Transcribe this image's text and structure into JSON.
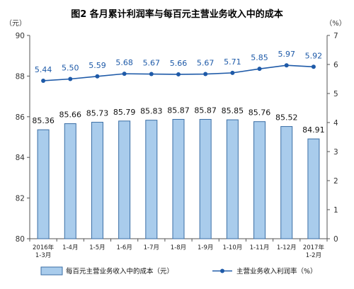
{
  "chart_data": {
    "type": "bar+line",
    "title": "图2 各月累计利润率与每百元主营业务收入中的成本",
    "left_axis_unit": "（元）",
    "right_axis_unit": "（%）",
    "categories": [
      [
        "2016年",
        "1-3月"
      ],
      [
        "1-4月"
      ],
      [
        "1-5月"
      ],
      [
        "1-6月"
      ],
      [
        "1-7月"
      ],
      [
        "1-8月"
      ],
      [
        "1-9月"
      ],
      [
        "1-10月"
      ],
      [
        "1-11月"
      ],
      [
        "1-12月"
      ],
      [
        "2017年",
        "1-2月"
      ]
    ],
    "series": [
      {
        "name": "每百元主营业务收入中的成本（元）",
        "type": "bar",
        "axis": "left",
        "values": [
          85.36,
          85.66,
          85.73,
          85.79,
          85.83,
          85.87,
          85.87,
          85.85,
          85.76,
          85.52,
          84.91
        ],
        "labels": [
          "85.36",
          "85.66",
          "85.73",
          "85.79",
          "85.83",
          "85.87",
          "85.87",
          "85.85",
          "85.76",
          "85.52",
          "84.91"
        ]
      },
      {
        "name": "主营业务收入利润率（%）",
        "type": "line",
        "axis": "right",
        "values": [
          5.44,
          5.5,
          5.59,
          5.68,
          5.67,
          5.66,
          5.67,
          5.71,
          5.85,
          5.97,
          5.92
        ],
        "labels": [
          "5.44",
          "5.50",
          "5.59",
          "5.68",
          "5.67",
          "5.66",
          "5.67",
          "5.71",
          "5.85",
          "5.97",
          "5.92"
        ]
      }
    ],
    "left_axis": {
      "min": 80,
      "max": 90,
      "ticks": [
        "80",
        "82",
        "84",
        "86",
        "88",
        "90"
      ]
    },
    "right_axis": {
      "min": 0,
      "max": 7,
      "ticks": [
        "0",
        "1",
        "2",
        "3",
        "4",
        "5",
        "6",
        "7"
      ]
    },
    "grid": false,
    "legend_position": "bottom",
    "colors": {
      "bar_fill": "#a9ccec",
      "bar_stroke": "#3a6ea5",
      "line": "#1e5aa8",
      "axis": "#555555"
    }
  }
}
